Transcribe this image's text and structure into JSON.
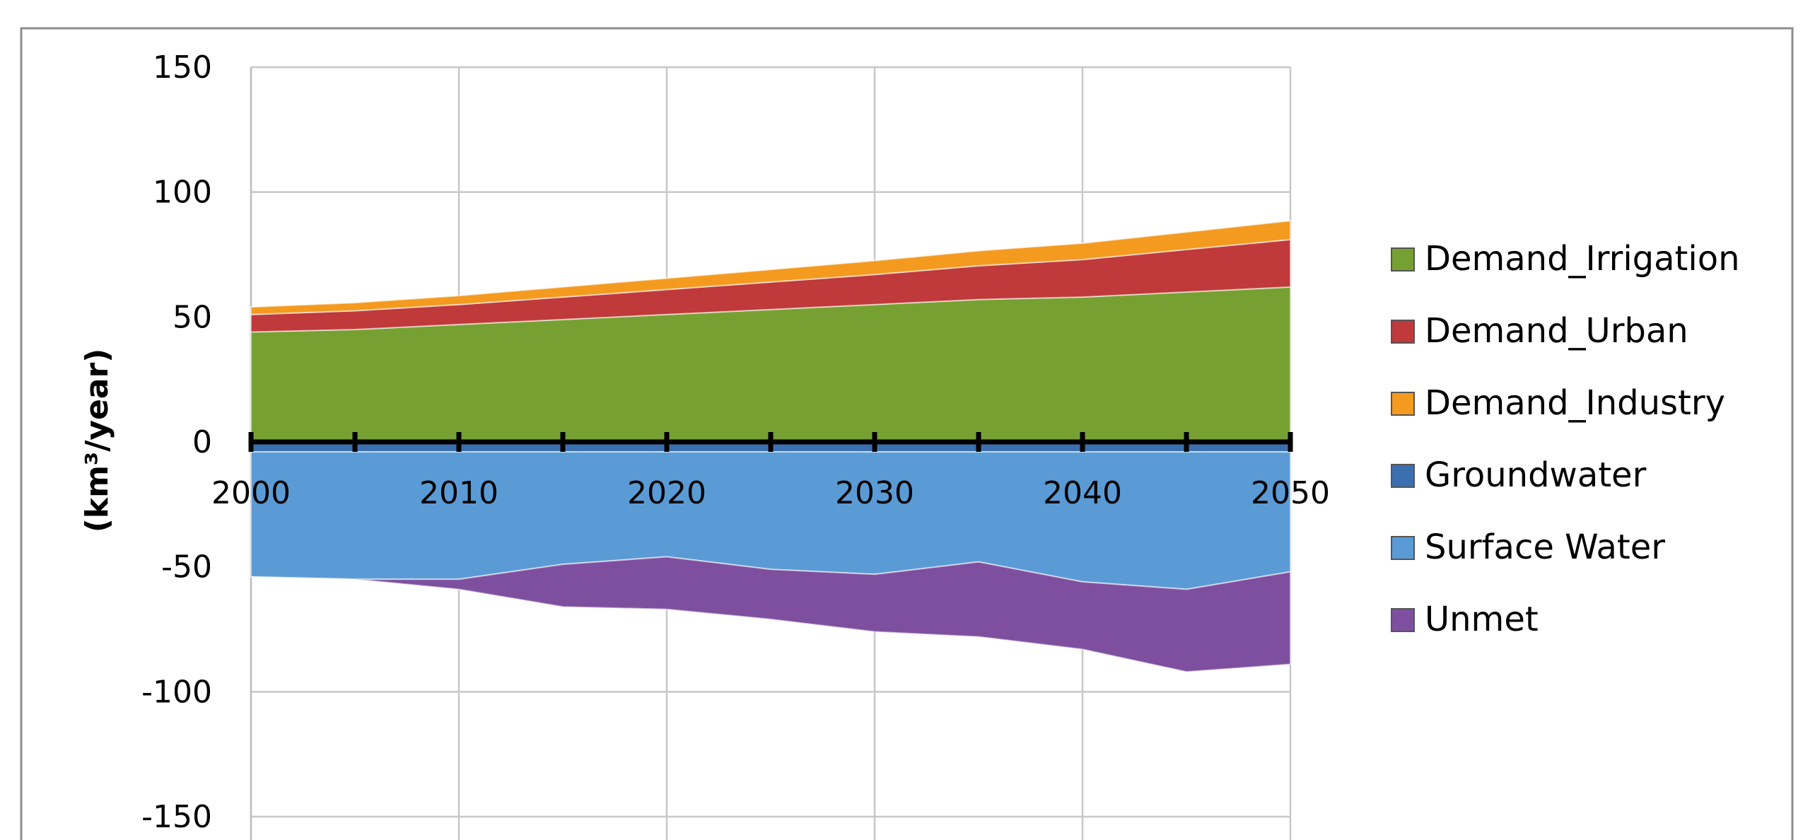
{
  "chart_data": {
    "type": "area",
    "title": "",
    "xlabel": "",
    "ylabel": "(km³/year)",
    "xlim": [
      2000,
      2050
    ],
    "ylim": [
      -150,
      150
    ],
    "x_ticks": [
      2000,
      2010,
      2020,
      2030,
      2040,
      2050
    ],
    "y_ticks": [
      150,
      100,
      50,
      0,
      -50,
      -100,
      -150
    ],
    "grid": "on",
    "legend_position": "right",
    "x": [
      2000,
      2005,
      2010,
      2015,
      2020,
      2025,
      2030,
      2035,
      2040,
      2045,
      2050
    ],
    "series": [
      {
        "name": "Demand_Irrigation",
        "color": "#77a033",
        "stack": "positive",
        "values": [
          44,
          45,
          47,
          49,
          51,
          53,
          55,
          57,
          58,
          60,
          62
        ]
      },
      {
        "name": "Demand_Urban",
        "color": "#c0393b",
        "stack": "positive",
        "values": [
          7,
          7.5,
          8,
          9,
          10,
          11,
          12,
          13.5,
          15,
          17,
          19
        ]
      },
      {
        "name": "Demand_Industry",
        "color": "#f39a1f",
        "stack": "positive",
        "values": [
          3,
          3.2,
          3.5,
          4,
          4.5,
          5,
          5.5,
          6,
          6.5,
          7,
          7.5
        ]
      },
      {
        "name": "Groundwater",
        "color": "#3b6fb0",
        "stack": "negative",
        "values": [
          -4,
          -4,
          -4,
          -4,
          -4,
          -4,
          -4,
          -4,
          -4,
          -4,
          -4
        ]
      },
      {
        "name": "Surface Water",
        "color": "#5b9bd5",
        "stack": "negative",
        "values": [
          -50,
          -51,
          -51,
          -45,
          -42,
          -47,
          -49,
          -44,
          -52,
          -55,
          -48
        ]
      },
      {
        "name": "Unmet",
        "color": "#7f4f9f",
        "stack": "negative",
        "values": [
          0,
          0,
          -4,
          -17,
          -21,
          -20,
          -23,
          -30,
          -27,
          -33,
          -37
        ]
      }
    ]
  }
}
